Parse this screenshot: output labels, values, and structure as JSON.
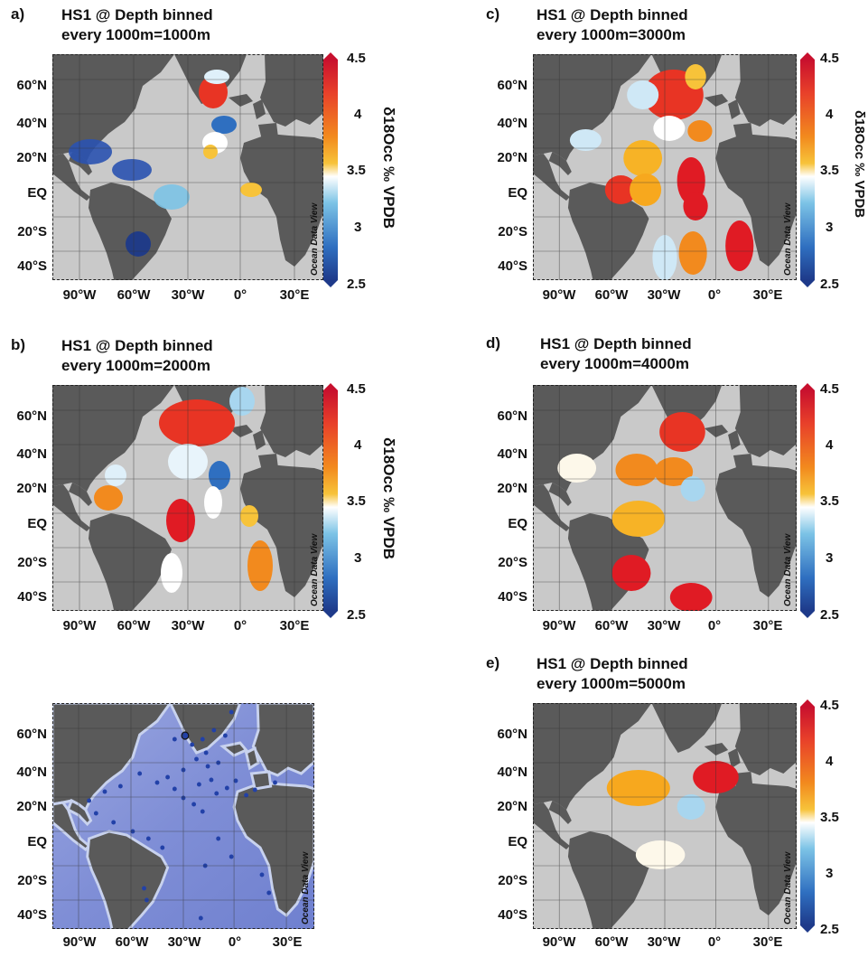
{
  "colorbar": {
    "ticks": [
      "4.5",
      "4",
      "3.5",
      "3",
      "2.5"
    ],
    "unit": "δ18Occ ‰ VPDB",
    "min": 2.5,
    "max": 4.5
  },
  "watermark": "Ocean Data View",
  "lat_labels": [
    "60°N",
    "40°N",
    "20°N",
    "EQ",
    "20°S",
    "40°S"
  ],
  "lon_labels": [
    "90°W",
    "60°W",
    "30°W",
    "0°",
    "30°E"
  ],
  "colors": {
    "land": "#5a5a5a",
    "ocean": "#c9c9c9",
    "bathymetry_deep": "#6c7fce",
    "bathymetry_shallow": "#b9c6e8"
  },
  "panels": [
    {
      "label": "a)",
      "title1": "HS1 @ Depth binned",
      "title2": "every 1000m=1000m"
    },
    {
      "label": "b)",
      "title1": "HS1 @ Depth binned",
      "title2": "every 1000m=2000m"
    },
    {
      "label": "c)",
      "title1": "HS1 @ Depth binned",
      "title2": "every 1000m=3000m"
    },
    {
      "label": "d)",
      "title1": "HS1 @ Depth binned",
      "title2": "every 1000m=4000m"
    },
    {
      "label": "e)",
      "title1": "HS1 @ Depth binned",
      "title2": "every 1000m=5000m"
    },
    {
      "label": "",
      "title1": "",
      "title2": ""
    }
  ]
}
